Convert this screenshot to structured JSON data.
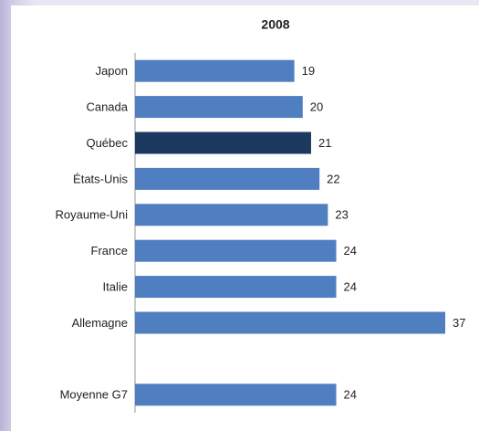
{
  "chart_data": {
    "type": "barh",
    "title": "2008",
    "categories": [
      "Japon",
      "Canada",
      "Québec",
      "États-Unis",
      "Royaume-Uni",
      "France",
      "Italie",
      "Allemagne",
      null,
      "Moyenne G7"
    ],
    "values": [
      19,
      20,
      21,
      22,
      23,
      24,
      24,
      37,
      null,
      24
    ],
    "colors": [
      "#4f7fc0",
      "#4f7fc0",
      "#1c3a60",
      "#4f7fc0",
      "#4f7fc0",
      "#4f7fc0",
      "#4f7fc0",
      "#4f7fc0",
      null,
      "#4f7fc0"
    ]
  }
}
